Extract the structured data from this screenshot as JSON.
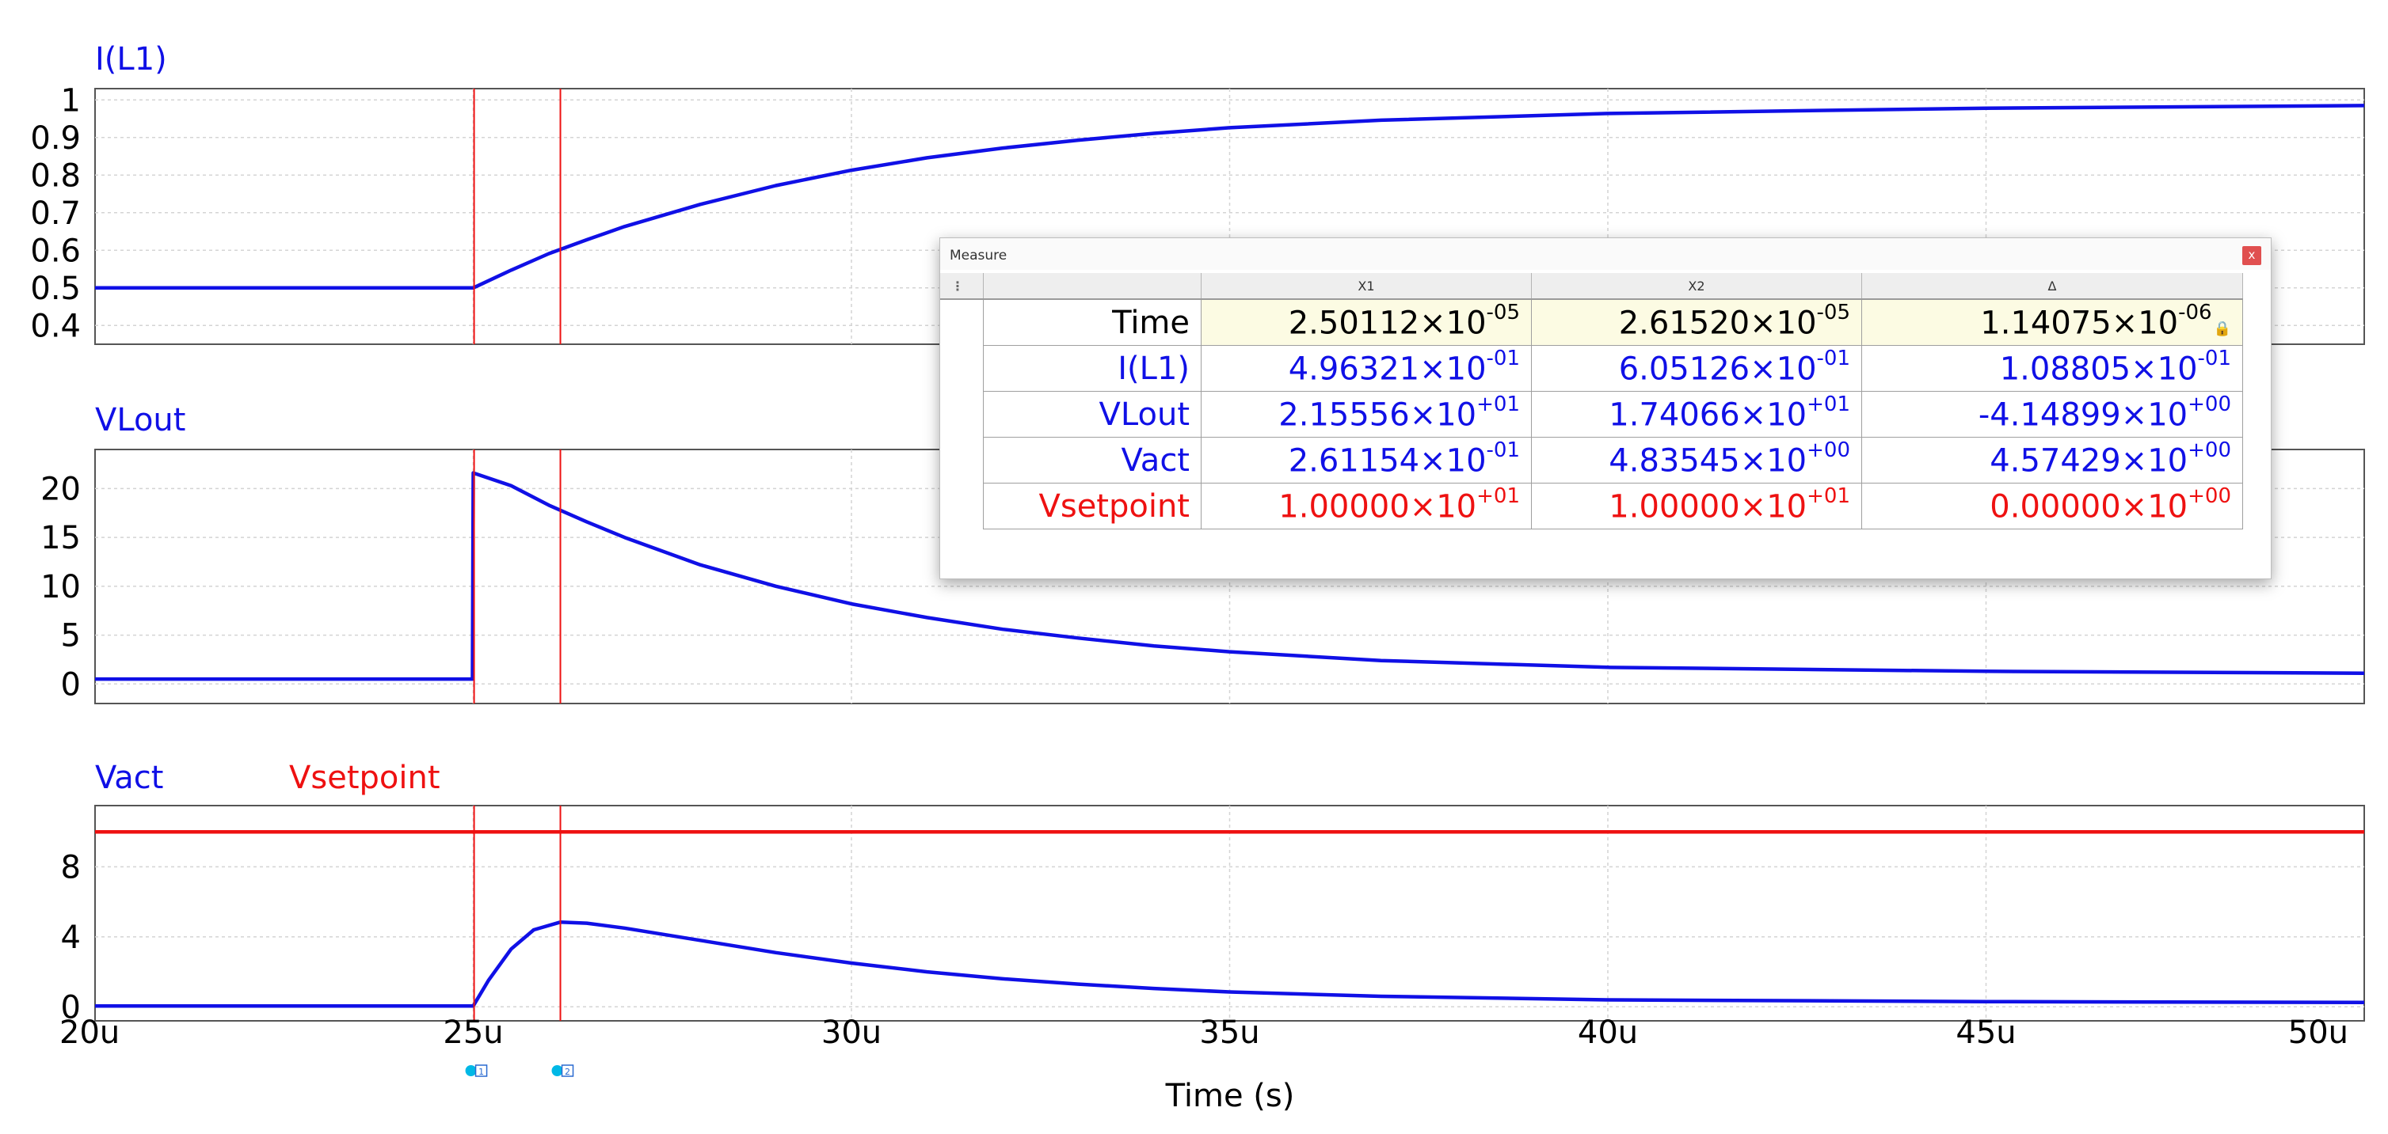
{
  "chart_data": {
    "type": "line",
    "xlabel": "Time (s)",
    "xlim": [
      20,
      50
    ],
    "x_ticks": [
      "20u",
      "25u",
      "30u",
      "35u",
      "40u",
      "45u",
      "50u"
    ],
    "x_tick_values": [
      20,
      25,
      30,
      35,
      40,
      45,
      50
    ],
    "cursors": [
      {
        "label": "1",
        "x": 25.0112
      },
      {
        "label": "2",
        "x": 26.152
      }
    ],
    "panels": [
      {
        "ylim": [
          0.35,
          1.03
        ],
        "y_ticks": [
          0.4,
          0.5,
          0.6,
          0.7,
          0.8,
          0.9,
          1
        ],
        "series": [
          {
            "name": "I(L1)",
            "color": "#1010e6",
            "x": [
              20,
              25,
              25.5,
              26,
              26.5,
              27,
              28,
              29,
              30,
              31,
              32,
              33,
              34,
              35,
              37,
              40,
              45,
              50
            ],
            "y": [
              0.5,
              0.5,
              0.547,
              0.591,
              0.628,
              0.663,
              0.722,
              0.772,
              0.813,
              0.846,
              0.872,
              0.893,
              0.911,
              0.926,
              0.946,
              0.964,
              0.978,
              0.985
            ]
          }
        ]
      },
      {
        "ylim": [
          -2,
          24
        ],
        "y_ticks": [
          0,
          5,
          10,
          15,
          20
        ],
        "series": [
          {
            "name": "VLout",
            "color": "#1010e6",
            "x": [
              20,
              24.99,
              25,
              25.5,
              26,
              26.5,
              27,
              28,
              29,
              30,
              31,
              32,
              33,
              34,
              35,
              37,
              40,
              45,
              50
            ],
            "y": [
              0.5,
              0.5,
              21.6,
              20.3,
              18.3,
              16.6,
              15.0,
              12.2,
              10.0,
              8.2,
              6.8,
              5.6,
              4.7,
              3.9,
              3.3,
              2.4,
              1.7,
              1.3,
              1.1
            ]
          }
        ]
      },
      {
        "ylim": [
          -0.8,
          11.5
        ],
        "y_ticks": [
          0,
          4,
          8
        ],
        "series": [
          {
            "name": "Vact",
            "color": "#1010e6",
            "x": [
              20,
              25,
              25.2,
              25.5,
              25.8,
              26.15,
              26.5,
              27,
              28,
              29,
              30,
              31,
              32,
              33,
              34,
              35,
              37,
              40,
              45,
              50
            ],
            "y": [
              0.05,
              0.05,
              1.5,
              3.3,
              4.4,
              4.84,
              4.78,
              4.5,
              3.8,
              3.1,
              2.5,
              2.0,
              1.6,
              1.3,
              1.05,
              0.85,
              0.6,
              0.4,
              0.3,
              0.25
            ]
          },
          {
            "name": "Vsetpoint",
            "color": "#ee1111",
            "x": [
              20,
              50
            ],
            "y": [
              10,
              10
            ]
          }
        ]
      }
    ]
  },
  "measure": {
    "title": "Measure",
    "close": "x",
    "menu": "⋮",
    "columns": [
      "X1",
      "X2",
      "Δ"
    ],
    "rows": [
      {
        "label": "Time",
        "color": "#000000",
        "cells": [
          {
            "m": "2.50112×10",
            "e": "-05"
          },
          {
            "m": "2.61520×10",
            "e": "-05"
          },
          {
            "m": "1.14075×10",
            "e": "-06"
          }
        ]
      },
      {
        "label": "I(L1)",
        "color": "#1010e6",
        "cells": [
          {
            "m": "4.96321×10",
            "e": "-01"
          },
          {
            "m": "6.05126×10",
            "e": "-01"
          },
          {
            "m": "1.08805×10",
            "e": "-01"
          }
        ]
      },
      {
        "label": "VLout",
        "color": "#1010e6",
        "cells": [
          {
            "m": "2.15556×10",
            "e": "+01"
          },
          {
            "m": "1.74066×10",
            "e": "+01"
          },
          {
            "m": "-4.14899×10",
            "e": "+00"
          }
        ]
      },
      {
        "label": "Vact",
        "color": "#1010e6",
        "cells": [
          {
            "m": "2.61154×10",
            "e": "-01"
          },
          {
            "m": "4.83545×10",
            "e": "+00"
          },
          {
            "m": "4.57429×10",
            "e": "+00"
          }
        ]
      },
      {
        "label": "Vsetpoint",
        "color": "#ee1111",
        "cells": [
          {
            "m": "1.00000×10",
            "e": "+01"
          },
          {
            "m": "1.00000×10",
            "e": "+01"
          },
          {
            "m": "0.00000×10",
            "e": "+00"
          }
        ]
      }
    ],
    "lock_icon": "lock-icon"
  }
}
